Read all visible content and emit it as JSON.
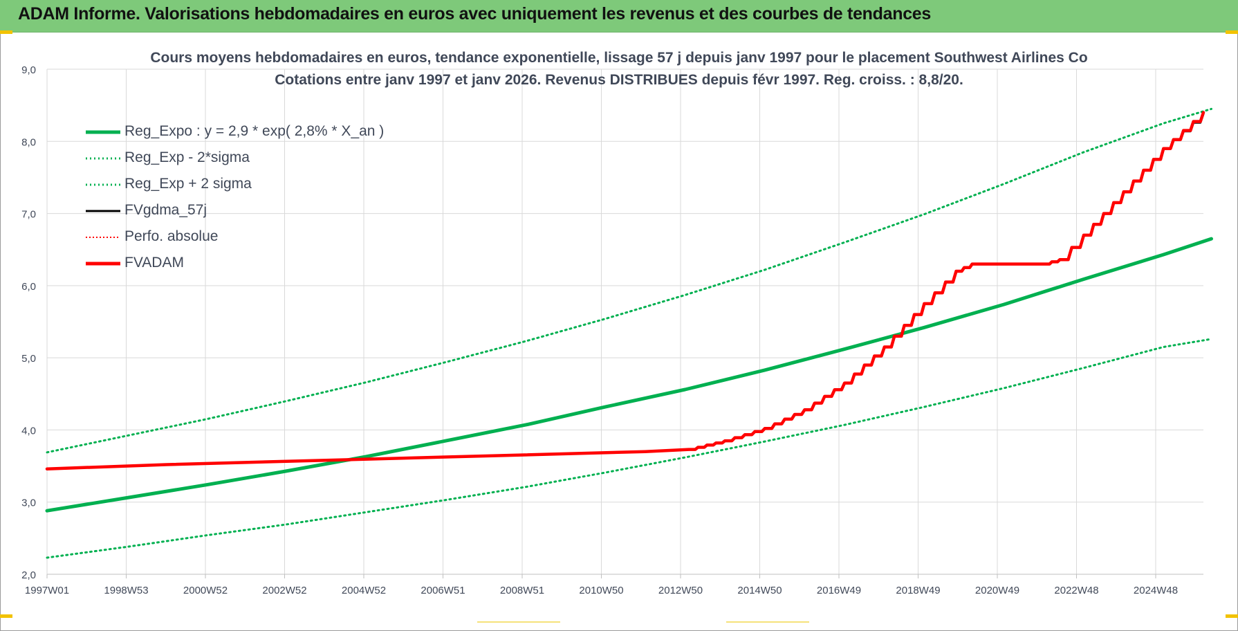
{
  "header": {
    "title": "ADAM Informe. Valorisations hebdomadaires en euros avec uniquement les revenus et des courbes de tendances"
  },
  "chart_data": {
    "type": "line",
    "title_lines": [
      "Cours moyens hebdomadaires en euros, tendance exponentielle, lissage 57 j depuis janv 1997  pour le placement Southwest Airlines Co",
      "Cotations entre janv 1997 et janv 2026. Revenus DISTRIBUES depuis févr 1997. Reg. croiss. : 8,8/20."
    ],
    "xlabel": "",
    "ylabel": "",
    "x_ticks": [
      "1997W01",
      "1998W53",
      "2000W52",
      "2002W52",
      "2004W52",
      "2006W51",
      "2008W51",
      "2010W50",
      "2012W50",
      "2014W50",
      "2016W49",
      "2018W49",
      "2020W49",
      "2022W48",
      "2024W48"
    ],
    "x_range": [
      1997.0,
      2026.0
    ],
    "ylim": [
      2.0,
      9.0
    ],
    "y_ticks": [
      "2,0",
      "3,0",
      "4,0",
      "5,0",
      "6,0",
      "7,0",
      "8,0",
      "9,0"
    ],
    "grid": true,
    "legend_position": "top-left",
    "series": [
      {
        "name": "Reg_Expo : y = 2,9 * exp( 2,8% *  X_an )",
        "color": "#00b050",
        "style": "solid-thick",
        "x": [
          1997.0,
          1999.0,
          2001.0,
          2003.0,
          2005.0,
          2007.0,
          2009.0,
          2011.0,
          2013.0,
          2015.0,
          2017.0,
          2019.0,
          2021.0,
          2023.0,
          2025.0,
          2026.2
        ],
        "y": [
          2.88,
          3.06,
          3.24,
          3.43,
          3.63,
          3.85,
          4.07,
          4.32,
          4.56,
          4.83,
          5.12,
          5.42,
          5.74,
          6.09,
          6.43,
          6.65
        ]
      },
      {
        "name": "Reg_Exp - 2*sigma",
        "color": "#00b050",
        "style": "dotted",
        "x": [
          1997.0,
          1999.0,
          2001.0,
          2003.0,
          2005.0,
          2007.0,
          2009.0,
          2011.0,
          2013.0,
          2015.0,
          2017.0,
          2019.0,
          2021.0,
          2023.0,
          2025.0,
          2026.2
        ],
        "y": [
          2.23,
          2.38,
          2.54,
          2.69,
          2.86,
          3.03,
          3.21,
          3.41,
          3.62,
          3.84,
          4.07,
          4.32,
          4.58,
          4.86,
          5.15,
          5.26
        ]
      },
      {
        "name": "Reg_Exp + 2 sigma",
        "color": "#00b050",
        "style": "dotted",
        "x": [
          1997.0,
          1999.0,
          2001.0,
          2003.0,
          2005.0,
          2007.0,
          2009.0,
          2011.0,
          2013.0,
          2015.0,
          2017.0,
          2019.0,
          2021.0,
          2023.0,
          2025.0,
          2026.2
        ],
        "y": [
          3.69,
          3.92,
          4.15,
          4.4,
          4.66,
          4.94,
          5.23,
          5.54,
          5.87,
          6.22,
          6.6,
          6.99,
          7.41,
          7.85,
          8.25,
          8.45
        ]
      },
      {
        "name": "FVgdma_57j",
        "color": "#000000",
        "style": "solid",
        "x": [
          1997.0,
          2000.0,
          2004.0,
          2008.0,
          2012.0,
          2013.1,
          2014.0,
          2015.0,
          2016.0,
          2017.0,
          2018.0,
          2019.0,
          2019.8,
          2020.2,
          2022.0,
          2022.4,
          2023.0,
          2024.0,
          2025.0,
          2026.0
        ],
        "y": [
          3.46,
          3.52,
          3.58,
          3.64,
          3.7,
          3.73,
          3.85,
          4.02,
          4.28,
          4.65,
          5.15,
          5.75,
          6.2,
          6.3,
          6.3,
          6.36,
          6.7,
          7.3,
          7.9,
          8.38
        ]
      },
      {
        "name": "Perfo. absolue",
        "color": "#ff0000",
        "style": "dotted",
        "x": [],
        "y": []
      },
      {
        "name": "FVADAM",
        "color": "#ff0000",
        "style": "solid-thick-stepped",
        "x": [
          1997.0,
          2000.0,
          2004.0,
          2008.0,
          2012.0,
          2013.1,
          2014.0,
          2015.0,
          2016.0,
          2017.0,
          2018.0,
          2019.0,
          2019.8,
          2020.2,
          2022.0,
          2022.4,
          2023.0,
          2024.0,
          2025.0,
          2026.0
        ],
        "y": [
          3.46,
          3.52,
          3.58,
          3.64,
          3.7,
          3.73,
          3.85,
          4.02,
          4.28,
          4.65,
          5.15,
          5.75,
          6.2,
          6.3,
          6.3,
          6.36,
          6.7,
          7.3,
          7.9,
          8.4
        ]
      }
    ]
  }
}
